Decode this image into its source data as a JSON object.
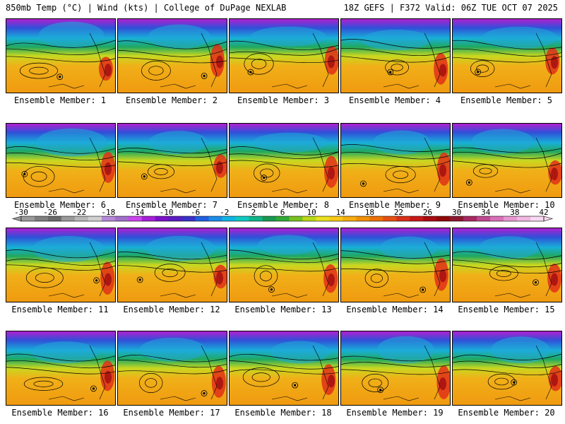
{
  "header": {
    "left": "850mb Temp (°C) | Wind (kts) | College of DuPage NEXLAB",
    "right": "18Z GEFS | F372 Valid: 06Z TUE OCT 07 2025"
  },
  "legend": {
    "ticks": [
      "-30",
      "-26",
      "-22",
      "-18",
      "-14",
      "-10",
      "-6",
      "-2",
      "2",
      "6",
      "10",
      "14",
      "18",
      "22",
      "26",
      "30",
      "34",
      "38",
      "42"
    ],
    "colors": [
      "#9a9a9a",
      "#7e7e7e",
      "#6a6a6a",
      "#9a9a9a",
      "#b6b6b6",
      "#d0d0d0",
      "#b48ad6",
      "#a070c8",
      "#cc44ee",
      "#a420d8",
      "#7a10c8",
      "#5a1cc0",
      "#3a30c8",
      "#2060e0",
      "#1c8ce8",
      "#10b4e0",
      "#10c8c0",
      "#10b488",
      "#189850",
      "#30a838",
      "#78c020",
      "#b8d818",
      "#e8e020",
      "#f8c818",
      "#f4ac10",
      "#f09008",
      "#ec7008",
      "#e45010",
      "#d83018",
      "#c81818",
      "#a80c10",
      "#900808",
      "#8c1830",
      "#a82860",
      "#c04890",
      "#d870b8",
      "#e898d0",
      "#f0b8e0",
      "#f8d8f0"
    ]
  },
  "members": [
    {
      "label": "Ensemble Member: 1"
    },
    {
      "label": "Ensemble Member: 2"
    },
    {
      "label": "Ensemble Member: 3"
    },
    {
      "label": "Ensemble Member: 4"
    },
    {
      "label": "Ensemble Member: 5"
    },
    {
      "label": "Ensemble Member: 6"
    },
    {
      "label": "Ensemble Member: 7"
    },
    {
      "label": "Ensemble Member: 8"
    },
    {
      "label": "Ensemble Member: 9"
    },
    {
      "label": "Ensemble Member: 10"
    },
    {
      "label": "Ensemble Member: 11"
    },
    {
      "label": "Ensemble Member: 12"
    },
    {
      "label": "Ensemble Member: 13"
    },
    {
      "label": "Ensemble Member: 14"
    },
    {
      "label": "Ensemble Member: 15"
    },
    {
      "label": "Ensemble Member: 16"
    },
    {
      "label": "Ensemble Member: 17"
    },
    {
      "label": "Ensemble Member: 18"
    },
    {
      "label": "Ensemble Member: 19"
    },
    {
      "label": "Ensemble Member: 20"
    }
  ]
}
